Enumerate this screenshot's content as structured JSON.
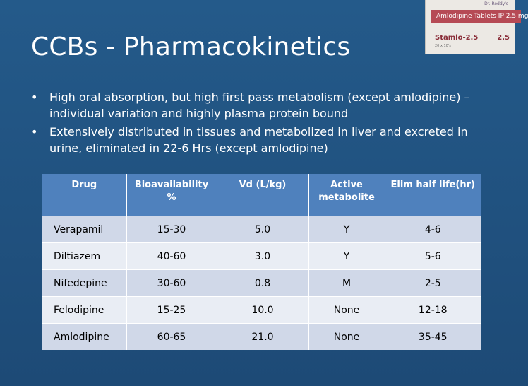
{
  "title": "CCBs - Pharmacokinetics",
  "bullets": [
    "High oral absorption, but high first pass metabolism (except amlodipine) – individual variation and highly plasma protein bound",
    "Extensively distributed in tissues and metabolized in liver and excreted in urine, eliminated in 22-6 Hrs (except amlodipine)"
  ],
  "bullet_glyph": "•",
  "pillbox": {
    "logo": "Dr. Reddy's",
    "band_text": "Amlodipine Tablets IP 2.5 mg",
    "brand": "Stamlo-2.5",
    "dose": "2.5",
    "pack": "20 x 10's"
  },
  "table": {
    "headers": [
      "Drug",
      "Bioavailability %",
      "Vd (L/kg)",
      "Active metabolite",
      "Elim half life(hr)"
    ],
    "rows": [
      [
        "Verapamil",
        "15-30",
        "5.0",
        "Y",
        "4-6"
      ],
      [
        "Diltiazem",
        "40-60",
        "3.0",
        "Y",
        "5-6"
      ],
      [
        "Nifedepine",
        "30-60",
        "0.8",
        "M",
        "2-5"
      ],
      [
        "Felodipine",
        "15-25",
        "10.0",
        "None",
        "12-18"
      ],
      [
        "Amlodipine",
        "60-65",
        "21.0",
        "None",
        "35-45"
      ]
    ]
  },
  "colors": {
    "background": "#1f4e79",
    "table_header": "#4f81bd",
    "row_odd": "#d0d8e8",
    "row_even": "#e9edf4"
  }
}
